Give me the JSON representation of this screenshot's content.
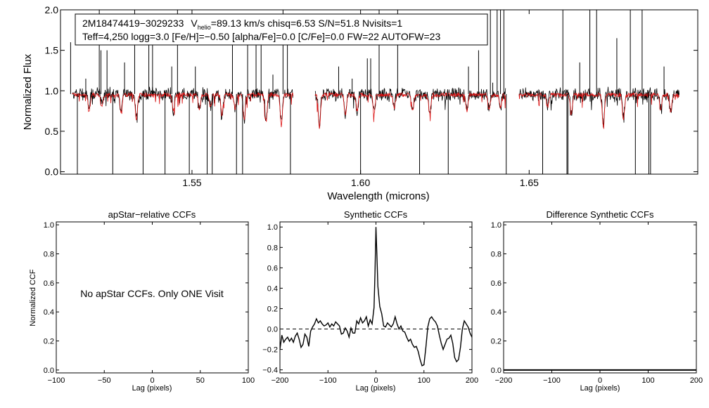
{
  "colors": {
    "observed": "#000000",
    "model": "#dd1111",
    "axis": "#000000",
    "background": "#ffffff"
  },
  "chart_data": [
    {
      "id": "spectrum",
      "type": "line",
      "title": "",
      "xlabel": "Wavelength (microns)",
      "ylabel": "Normalized Flux",
      "xlim": [
        1.511,
        1.7
      ],
      "ylim": [
        -0.03,
        2.0
      ],
      "xticks": [
        1.55,
        1.6,
        1.65
      ],
      "xtick_labels": [
        "1.55",
        "1.60",
        "1.65"
      ],
      "yticks": [
        0.0,
        0.5,
        1.0,
        1.5,
        2.0
      ],
      "ytick_labels": [
        "0.0",
        "0.5",
        "1.0",
        "1.5",
        "2.0"
      ],
      "info_box": {
        "line1_star": "2M18474419−3029233",
        "line1_v": "V",
        "line1_v_sub": "helio",
        "line1_rest": "=89.13 km/s  chisq=6.53  S/N=51.8  Nvisits=1",
        "line2": "Teff=4,250 logg=3.0 [Fe/H]=−0.50 [alpha/Fe]=0.0 [C/Fe]=0.0 FW=22 AUTOFW=23"
      },
      "chip_ranges": [
        [
          1.5145,
          1.58
        ],
        [
          1.5865,
          1.643
        ],
        [
          1.647,
          1.6945
        ]
      ],
      "continuum": {
        "observed": 0.96,
        "model": 0.95
      },
      "series": [
        {
          "name": "observed",
          "absorption_lines": [
            [
              1.5195,
              0.18
            ],
            [
              1.5232,
              0.12
            ],
            [
              1.529,
              0.22
            ],
            [
              1.5335,
              0.28
            ],
            [
              1.5445,
              0.2
            ],
            [
              1.5522,
              0.18
            ],
            [
              1.5555,
              0.16
            ],
            [
              1.5589,
              0.25
            ],
            [
              1.5628,
              0.17
            ],
            [
              1.5655,
              0.3
            ],
            [
              1.572,
              0.32
            ],
            [
              1.5765,
              0.36
            ],
            [
              1.5878,
              0.42
            ],
            [
              1.5955,
              0.25
            ],
            [
              1.599,
              0.2
            ],
            [
              1.604,
              0.22
            ],
            [
              1.61,
              0.16
            ],
            [
              1.6155,
              0.2
            ],
            [
              1.6205,
              0.24
            ],
            [
              1.6315,
              0.2
            ],
            [
              1.6381,
              0.18
            ],
            [
              1.6415,
              0.15
            ],
            [
              1.6555,
              0.14
            ],
            [
              1.6625,
              0.25
            ],
            [
              1.672,
              0.38
            ],
            [
              1.678,
              0.3
            ],
            [
              1.689,
              0.2
            ],
            [
              1.692,
              0.2
            ]
          ],
          "bad_pixel_spikes": [
            [
              1.514,
              1.6
            ],
            [
              1.516,
              -0.1
            ],
            [
              1.5185,
              1.15
            ],
            [
              1.5225,
              2.0
            ],
            [
              1.523,
              1.5
            ],
            [
              1.5248,
              1.5
            ],
            [
              1.5265,
              -0.1
            ],
            [
              1.53,
              1.35
            ],
            [
              1.533,
              2.0
            ],
            [
              1.5355,
              -0.1
            ],
            [
              1.5372,
              1.6
            ],
            [
              1.5383,
              1.6
            ],
            [
              1.542,
              -0.1
            ],
            [
              1.544,
              1.3
            ],
            [
              1.5457,
              2.0
            ],
            [
              1.5492,
              -0.1
            ],
            [
              1.551,
              1.3
            ],
            [
              1.5545,
              -0.1
            ],
            [
              1.556,
              -0.1
            ],
            [
              1.562,
              1.6
            ],
            [
              1.5632,
              -0.1
            ],
            [
              1.565,
              -0.1
            ],
            [
              1.5665,
              1.9
            ],
            [
              1.569,
              1.6
            ],
            [
              1.5705,
              1.9
            ],
            [
              1.574,
              1.2
            ],
            [
              1.577,
              2.0
            ],
            [
              1.5783,
              1.75
            ],
            [
              1.5792,
              -0.1
            ],
            [
              1.5935,
              1.3
            ],
            [
              1.5975,
              1.15
            ],
            [
              1.6,
              -0.1
            ],
            [
              1.602,
              1.4
            ],
            [
              1.603,
              1.4
            ],
            [
              1.6055,
              2.0
            ],
            [
              1.611,
              2.0
            ],
            [
              1.6175,
              -0.1
            ],
            [
              1.626,
              -0.1
            ],
            [
              1.632,
              1.3
            ],
            [
              1.635,
              1.5
            ],
            [
              1.6385,
              2.0
            ],
            [
              1.6392,
              1.1
            ],
            [
              1.6405,
              2.0
            ],
            [
              1.6415,
              2.0
            ],
            [
              1.6425,
              2.0
            ],
            [
              1.6432,
              -0.1
            ],
            [
              1.654,
              -0.1
            ],
            [
              1.66,
              2.0
            ],
            [
              1.6612,
              -0.1
            ],
            [
              1.6615,
              -0.1
            ],
            [
              1.665,
              1.35
            ],
            [
              1.668,
              2.0
            ],
            [
              1.67,
              2.0
            ],
            [
              1.676,
              1.65
            ],
            [
              1.68,
              2.0
            ],
            [
              1.6815,
              -0.1
            ],
            [
              1.6835,
              2.0
            ],
            [
              1.6855,
              -0.1
            ],
            [
              1.686,
              -0.1
            ],
            [
              1.69,
              1.3
            ]
          ]
        },
        {
          "name": "model",
          "absorption_lines": [
            [
              1.5195,
              0.2
            ],
            [
              1.5232,
              0.14
            ],
            [
              1.529,
              0.22
            ],
            [
              1.5335,
              0.3
            ],
            [
              1.5445,
              0.2
            ],
            [
              1.5522,
              0.18
            ],
            [
              1.5555,
              0.16
            ],
            [
              1.5589,
              0.25
            ],
            [
              1.5628,
              0.17
            ],
            [
              1.5655,
              0.3
            ],
            [
              1.572,
              0.32
            ],
            [
              1.5765,
              0.4
            ],
            [
              1.5878,
              0.42
            ],
            [
              1.5955,
              0.25
            ],
            [
              1.599,
              0.2
            ],
            [
              1.604,
              0.22
            ],
            [
              1.61,
              0.16
            ],
            [
              1.6155,
              0.2
            ],
            [
              1.6205,
              0.24
            ],
            [
              1.6315,
              0.2
            ],
            [
              1.6381,
              0.18
            ],
            [
              1.6415,
              0.15
            ],
            [
              1.6555,
              0.14
            ],
            [
              1.6625,
              0.25
            ],
            [
              1.672,
              0.4
            ],
            [
              1.678,
              0.3
            ],
            [
              1.689,
              0.2
            ],
            [
              1.692,
              0.2
            ]
          ]
        }
      ]
    },
    {
      "id": "apstar-ccf",
      "type": "line",
      "title": "apStar−relative CCFs",
      "xlabel": "Lag (pixels)",
      "ylabel": "Normalized CCF",
      "xlim": [
        -100,
        100
      ],
      "ylim": [
        -0.02,
        1.02
      ],
      "xticks": [
        -100,
        -50,
        0,
        50,
        100
      ],
      "xtick_labels": [
        "−100",
        "−50",
        "0",
        "50",
        "100"
      ],
      "yticks": [
        0.0,
        0.2,
        0.4,
        0.6,
        0.8,
        1.0
      ],
      "ytick_labels": [
        "0.0",
        "0.2",
        "0.4",
        "0.6",
        "0.8",
        "1.0"
      ],
      "note": "No apStar CCFs.  Only ONE Visit",
      "series": []
    },
    {
      "id": "synthetic-ccf",
      "type": "line",
      "title": "Synthetic CCFs",
      "xlabel": "Lag (pixels)",
      "ylabel": "",
      "xlim": [
        -200,
        200
      ],
      "ylim": [
        -0.43,
        1.05
      ],
      "xticks": [
        -200,
        -100,
        0,
        100,
        200
      ],
      "xtick_labels": [
        "−200",
        "−100",
        "0",
        "100",
        "200"
      ],
      "yticks": [
        -0.4,
        -0.2,
        0.0,
        0.2,
        0.4,
        0.6,
        0.8,
        1.0
      ],
      "ytick_labels": [
        "−0.4",
        "−0.2",
        "0.0",
        "0.2",
        "0.4",
        "0.6",
        "0.8",
        "1.0"
      ],
      "zero_line": 0.0,
      "series": [
        {
          "name": "ccf",
          "x": [
            -200,
            -196,
            -192,
            -188,
            -184,
            -180,
            -176,
            -172,
            -168,
            -164,
            -160,
            -156,
            -152,
            -148,
            -144,
            -140,
            -136,
            -132,
            -128,
            -124,
            -120,
            -116,
            -112,
            -108,
            -104,
            -100,
            -96,
            -92,
            -88,
            -84,
            -80,
            -76,
            -72,
            -68,
            -64,
            -60,
            -56,
            -52,
            -48,
            -44,
            -40,
            -36,
            -32,
            -28,
            -24,
            -20,
            -16,
            -12,
            -8,
            -4,
            -2,
            0,
            2,
            4,
            8,
            12,
            16,
            20,
            24,
            28,
            32,
            36,
            40,
            44,
            48,
            52,
            56,
            60,
            64,
            68,
            72,
            76,
            80,
            84,
            88,
            92,
            96,
            100,
            104,
            108,
            112,
            116,
            120,
            124,
            128,
            132,
            136,
            140,
            144,
            148,
            152,
            156,
            160,
            164,
            168,
            172,
            176,
            180,
            184,
            188,
            192,
            196,
            200
          ],
          "y": [
            -0.2,
            -0.06,
            -0.13,
            -0.1,
            -0.08,
            -0.12,
            -0.09,
            -0.13,
            -0.07,
            -0.04,
            -0.1,
            -0.18,
            -0.15,
            -0.05,
            -0.08,
            -0.17,
            -0.02,
            0.02,
            0.05,
            0.1,
            0.06,
            0.08,
            0.05,
            0.03,
            0.04,
            0.06,
            0.02,
            0.05,
            0.03,
            0.07,
            0.05,
            0.03,
            -0.05,
            -0.04,
            0.01,
            -0.02,
            -0.08,
            0.01,
            -0.04,
            -0.04,
            0.08,
            0.05,
            0.11,
            0.06,
            0.08,
            0.12,
            0.03,
            0.09,
            0.05,
            0.21,
            0.55,
            1.0,
            0.72,
            0.42,
            0.22,
            0.15,
            0.03,
            0.02,
            0.06,
            0.04,
            0.02,
            0.05,
            0.12,
            0.05,
            0.0,
            0.03,
            -0.02,
            -0.03,
            -0.08,
            -0.12,
            -0.1,
            -0.15,
            -0.18,
            -0.17,
            -0.22,
            -0.3,
            -0.36,
            -0.35,
            -0.18,
            0.02,
            0.1,
            0.12,
            0.09,
            0.07,
            0.03,
            -0.06,
            -0.14,
            -0.2,
            -0.15,
            -0.1,
            -0.09,
            -0.06,
            -0.14,
            -0.28,
            -0.32,
            -0.3,
            -0.18,
            0.0,
            0.08,
            0.05,
            0.02,
            -0.04,
            -0.08
          ]
        }
      ]
    },
    {
      "id": "difference-ccf",
      "type": "line",
      "title": "Difference Synthetic CCFs",
      "xlabel": "Lag (pixels)",
      "ylabel": "",
      "xlim": [
        -200,
        200
      ],
      "ylim": [
        -0.02,
        1.02
      ],
      "xticks": [
        -200,
        -100,
        0,
        100,
        200
      ],
      "xtick_labels": [
        "−200",
        "−100",
        "0",
        "100",
        "200"
      ],
      "yticks": [
        0.0,
        0.2,
        0.4,
        0.6,
        0.8,
        1.0
      ],
      "ytick_labels": [
        "0.0",
        "0.2",
        "0.4",
        "0.6",
        "0.8",
        "1.0"
      ],
      "series": [
        {
          "name": "difference",
          "x": [
            -200,
            200
          ],
          "y": [
            0.0,
            0.0
          ]
        }
      ]
    }
  ]
}
